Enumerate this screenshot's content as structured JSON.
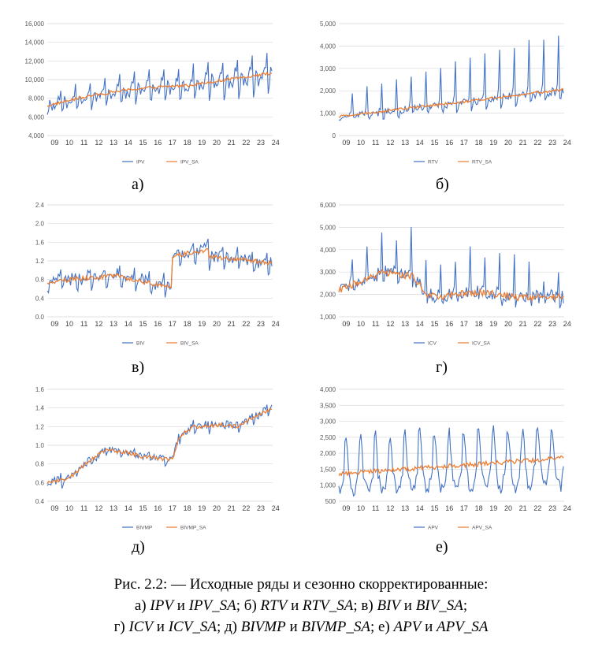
{
  "colors": {
    "original": "#4472C4",
    "seasonally_adjusted": "#ED7D31",
    "grid": "#D9D9D9"
  },
  "x_tick_labels": [
    "09",
    "10",
    "11",
    "12",
    "13",
    "14",
    "15",
    "16",
    "17",
    "18",
    "19",
    "20",
    "21",
    "22",
    "23",
    "24"
  ],
  "panels": [
    {
      "label": "а)"
    },
    {
      "label": "б)"
    },
    {
      "label": "в)"
    },
    {
      "label": "г)"
    },
    {
      "label": "д)"
    },
    {
      "label": "е)"
    }
  ],
  "chart_data": [
    {
      "type": "line",
      "panel": "а)",
      "yticks": [
        "4,000",
        "6,000",
        "8,000",
        "10,000",
        "12,000",
        "14,000",
        "16,000"
      ],
      "ylim": [
        4000,
        16000
      ],
      "series": [
        {
          "name": "IPV"
        },
        {
          "name": "IPV_SA"
        }
      ],
      "shape": {
        "base_start": 7200,
        "base_end": 10700,
        "mid_bump": 900,
        "seasonal_amp": 1200,
        "trend_growth": 1.0,
        "noise": 300,
        "sa_noise": 150
      }
    },
    {
      "type": "line",
      "panel": "б)",
      "yticks": [
        "0",
        "1,000",
        "2,000",
        "3,000",
        "4,000",
        "5,000"
      ],
      "ylim": [
        0,
        5000
      ],
      "series": [
        {
          "name": "RTV"
        },
        {
          "name": "RTV_SA"
        }
      ],
      "shape": {
        "base_start": 850,
        "base_end": 2050,
        "seasonal": "december_spike",
        "spike_start": 1000,
        "spike_end": 2500,
        "noise": 150,
        "sa_noise": 60
      }
    },
    {
      "type": "line",
      "panel": "в)",
      "yticks": [
        "0.0",
        "0.4",
        "0.8",
        "1.2",
        "1.6",
        "2.0",
        "2.4"
      ],
      "ylim": [
        0,
        2.4
      ],
      "series": [
        {
          "name": "BIV"
        },
        {
          "name": "BIV_SA"
        }
      ],
      "shape": {
        "segments": [
          {
            "from": 2009,
            "to": 2014,
            "level_start": 0.75,
            "level_end": 0.9
          },
          {
            "from": 2014,
            "to": 2017.5,
            "level_start": 0.85,
            "level_end": 0.62
          },
          {
            "from": 2017.5,
            "to": 2020,
            "level_start": 1.3,
            "level_end": 1.45
          },
          {
            "from": 2020,
            "to": 2024.3,
            "level_start": 1.3,
            "level_end": 1.15
          }
        ],
        "seasonal_amp": 0.25,
        "noise": 0.1,
        "sa_noise": 0.05
      }
    },
    {
      "type": "line",
      "panel": "г)",
      "yticks": [
        "1,000",
        "2,000",
        "3,000",
        "4,000",
        "5,000",
        "6,000"
      ],
      "ylim": [
        1000,
        6000
      ],
      "series": [
        {
          "name": "ICV"
        },
        {
          "name": "ICV_SA"
        }
      ],
      "shape": {
        "levels": [
          [
            2009,
            2200
          ],
          [
            2011,
            2700
          ],
          [
            2012,
            3000
          ],
          [
            2014,
            2800
          ],
          [
            2015,
            2000
          ],
          [
            2016,
            1900
          ],
          [
            2018,
            2100
          ],
          [
            2020,
            2000
          ],
          [
            2021,
            1850
          ],
          [
            2024,
            1900
          ]
        ],
        "seasonal": "spiky",
        "spike_amp": 1500,
        "noise": 300,
        "sa_noise": 150
      }
    },
    {
      "type": "line",
      "panel": "д)",
      "yticks": [
        "0.4",
        "0.6",
        "0.8",
        "1.0",
        "1.2",
        "1.4",
        "1.6"
      ],
      "ylim": [
        0.4,
        1.6
      ],
      "series": [
        {
          "name": "BIVMP"
        },
        {
          "name": "BIVMP_SA"
        }
      ],
      "shape": {
        "levels": [
          [
            2009,
            0.6
          ],
          [
            2010.5,
            0.65
          ],
          [
            2012,
            0.85
          ],
          [
            2013,
            0.95
          ],
          [
            2014.5,
            0.92
          ],
          [
            2015.5,
            0.88
          ],
          [
            2017,
            0.85
          ],
          [
            2017.5,
            0.85
          ],
          [
            2018,
            1.1
          ],
          [
            2019,
            1.2
          ],
          [
            2021,
            1.22
          ],
          [
            2022,
            1.2
          ],
          [
            2023,
            1.3
          ],
          [
            2024.3,
            1.4
          ]
        ],
        "seasonal_amp": 0.05,
        "noise": 0.04,
        "sa_noise": 0.02
      }
    },
    {
      "type": "line",
      "panel": "е)",
      "yticks": [
        "500",
        "1,000",
        "1,500",
        "2,000",
        "2,500",
        "3,000",
        "3,500",
        "4,000"
      ],
      "ylim": [
        500,
        4000
      ],
      "series": [
        {
          "name": "APV"
        },
        {
          "name": "APV_SA"
        }
      ],
      "shape": {
        "base_start": 1350,
        "base_end": 1850,
        "seasonal": "summer_peak",
        "peak": 3300,
        "trough": 650,
        "noise": 200,
        "sa_noise": 70
      }
    }
  ],
  "caption": {
    "line1": "Рис. 2.2: — Исходные ряды и сезонно скорректированные:",
    "line2": [
      {
        "t": "а) "
      },
      {
        "t": "IPV",
        "i": true
      },
      {
        "t": " и "
      },
      {
        "t": "IPV_SA",
        "i": true
      },
      {
        "t": "; б) "
      },
      {
        "t": "RTV",
        "i": true
      },
      {
        "t": " и "
      },
      {
        "t": "RTV_SA",
        "i": true
      },
      {
        "t": "; в) "
      },
      {
        "t": "BIV",
        "i": true
      },
      {
        "t": " и "
      },
      {
        "t": "BIV_SA",
        "i": true
      },
      {
        "t": ";"
      }
    ],
    "line3": [
      {
        "t": "г) "
      },
      {
        "t": "ICV",
        "i": true
      },
      {
        "t": " и "
      },
      {
        "t": "ICV_SA",
        "i": true
      },
      {
        "t": "; д) "
      },
      {
        "t": "BIVMP",
        "i": true
      },
      {
        "t": " и "
      },
      {
        "t": "BIVMP_SA",
        "i": true
      },
      {
        "t": "; е) "
      },
      {
        "t": "APV",
        "i": true
      },
      {
        "t": " и "
      },
      {
        "t": "APV_SA",
        "i": true
      }
    ]
  }
}
